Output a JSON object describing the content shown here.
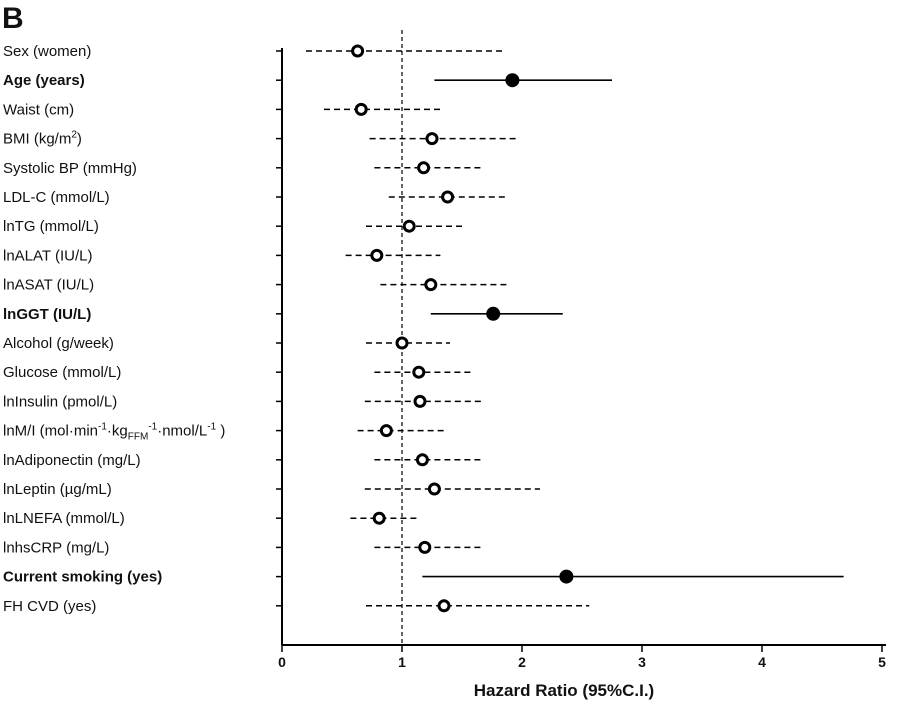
{
  "chart_data": {
    "type": "forest",
    "panel_label": "B",
    "xlabel": "Hazard Ratio (95%C.I.)",
    "xlim": [
      0,
      5
    ],
    "xticks": [
      0,
      1,
      2,
      3,
      4,
      5
    ],
    "reference_line": 1,
    "rows": [
      {
        "label": "Sex (women)",
        "hr": 0.63,
        "lo": 0.2,
        "hi": 1.84,
        "significant": false
      },
      {
        "label": "Age (years)",
        "hr": 1.92,
        "lo": 1.27,
        "hi": 2.75,
        "significant": true
      },
      {
        "label": "Waist (cm)",
        "hr": 0.66,
        "lo": 0.35,
        "hi": 1.32,
        "significant": false
      },
      {
        "label": "BMI (kg/m2)",
        "hr": 1.25,
        "lo": 0.73,
        "hi": 1.97,
        "significant": false
      },
      {
        "label": "Systolic BP (mmHg)",
        "hr": 1.18,
        "lo": 0.77,
        "hi": 1.67,
        "significant": false
      },
      {
        "label": "LDL-C (mmol/L)",
        "hr": 1.38,
        "lo": 0.89,
        "hi": 1.87,
        "significant": false
      },
      {
        "label": "lnTG (mmol/L)",
        "hr": 1.06,
        "lo": 0.7,
        "hi": 1.53,
        "significant": false
      },
      {
        "label": "lnALAT (IU/L)",
        "hr": 0.79,
        "lo": 0.53,
        "hi": 1.32,
        "significant": false
      },
      {
        "label": "lnASAT (IU/L)",
        "hr": 1.24,
        "lo": 0.82,
        "hi": 1.9,
        "significant": false
      },
      {
        "label": "lnGGT (IU/L)",
        "hr": 1.76,
        "lo": 1.24,
        "hi": 2.34,
        "significant": true
      },
      {
        "label": "Alcohol (g/week)",
        "hr": 1.0,
        "lo": 0.7,
        "hi": 1.4,
        "significant": false
      },
      {
        "label": "Glucose (mmol/L)",
        "hr": 1.14,
        "lo": 0.77,
        "hi": 1.6,
        "significant": false
      },
      {
        "label": "lnInsulin (pmol/L)",
        "hr": 1.15,
        "lo": 0.69,
        "hi": 1.66,
        "significant": false
      },
      {
        "label": "lnM/I (mol·min-1·kgFFM-1·nmol/L-1 )",
        "hr": 0.87,
        "lo": 0.63,
        "hi": 1.38,
        "significant": false
      },
      {
        "label": "lnAdiponectin (mg/L)",
        "hr": 1.17,
        "lo": 0.77,
        "hi": 1.67,
        "significant": false
      },
      {
        "label": "lnLeptin (µg/mL)",
        "hr": 1.27,
        "lo": 0.69,
        "hi": 2.15,
        "significant": false
      },
      {
        "label": "lnLNEFA (mmol/L)",
        "hr": 0.81,
        "lo": 0.57,
        "hi": 1.14,
        "significant": false
      },
      {
        "label": "lnhsCRP (mg/L)",
        "hr": 1.19,
        "lo": 0.77,
        "hi": 1.67,
        "significant": false
      },
      {
        "label": "Current smoking (yes)",
        "hr": 2.37,
        "lo": 1.17,
        "hi": 4.68,
        "significant": true
      },
      {
        "label": "FH CVD (yes)",
        "hr": 1.35,
        "lo": 0.7,
        "hi": 2.56,
        "significant": false
      }
    ]
  }
}
